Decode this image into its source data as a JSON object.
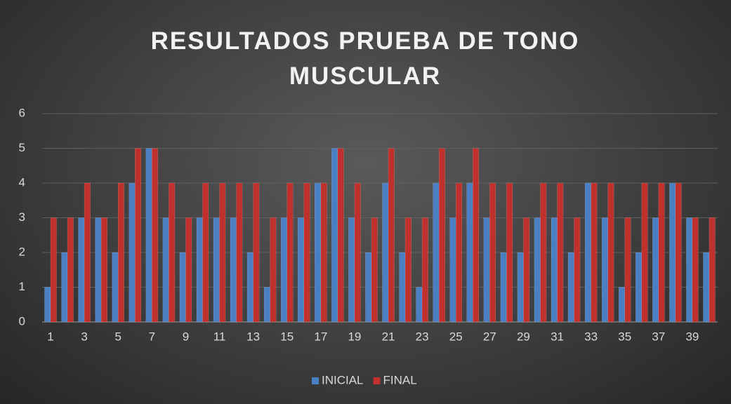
{
  "chart_data": {
    "type": "bar",
    "title": "RESULTADOS PRUEBA DE TONO MUSCULAR",
    "categories": [
      "1",
      null,
      "3",
      null,
      "5",
      null,
      "7",
      null,
      "9",
      null,
      "11",
      null,
      "13",
      null,
      "15",
      null,
      "17",
      null,
      "19",
      null,
      "21",
      null,
      "23",
      null,
      "25",
      null,
      "27",
      null,
      "29",
      null,
      "31",
      null,
      "33",
      null,
      "35",
      null,
      "37",
      null,
      "39",
      null
    ],
    "series": [
      {
        "name": "INICIAL",
        "color": "#4a7fc4",
        "values": [
          1,
          2,
          3,
          3,
          2,
          4,
          5,
          3,
          2,
          3,
          3,
          3,
          2,
          1,
          3,
          3,
          4,
          5,
          3,
          2,
          4,
          2,
          1,
          4,
          3,
          4,
          3,
          2,
          2,
          3,
          3,
          2,
          4,
          3,
          1,
          2,
          3,
          4,
          3,
          2
        ]
      },
      {
        "name": "FINAL",
        "color": "#c0302c",
        "values": [
          3,
          3,
          4,
          3,
          4,
          5,
          5,
          4,
          3,
          4,
          4,
          4,
          4,
          3,
          4,
          4,
          4,
          5,
          4,
          3,
          5,
          3,
          3,
          5,
          4,
          5,
          4,
          4,
          3,
          4,
          4,
          3,
          4,
          4,
          3,
          4,
          4,
          4,
          3,
          3
        ]
      }
    ],
    "ylim": [
      0,
      6
    ],
    "yticks": [
      0,
      1,
      2,
      3,
      4,
      5,
      6
    ],
    "grid": true,
    "legend": "bottom"
  }
}
